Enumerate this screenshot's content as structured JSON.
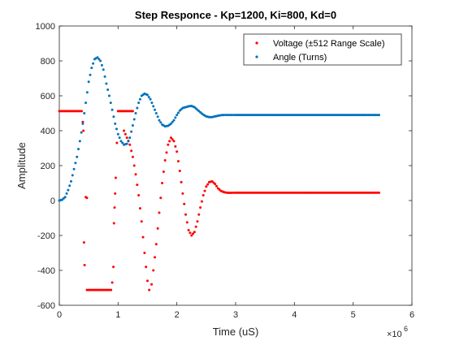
{
  "chart_data": {
    "type": "scatter",
    "title": "Step Responce - Kp=1200, Ki=800, Kd=0",
    "xlabel": "Time (uS)",
    "ylabel": "Amplitude",
    "x_exponent_label": "×10",
    "x_exponent_power": "6",
    "x_ticks": [
      "0",
      "1",
      "2",
      "3",
      "4",
      "5",
      "6"
    ],
    "y_ticks": [
      "-600",
      "-400",
      "-200",
      "0",
      "200",
      "400",
      "600",
      "800",
      "1000"
    ],
    "xlim": [
      0,
      6
    ],
    "ylim": [
      -600,
      1000
    ],
    "x_units_multiplier": 1000000,
    "grid": false,
    "legend_position": "top-right",
    "series": [
      {
        "name": "Voltage (±512 Range Scale)",
        "color": "#ff0000",
        "points": [
          [
            0.0,
            512
          ],
          [
            0.05,
            512
          ],
          [
            0.1,
            512
          ],
          [
            0.15,
            512
          ],
          [
            0.2,
            512
          ],
          [
            0.25,
            512
          ],
          [
            0.3,
            512
          ],
          [
            0.35,
            512
          ],
          [
            0.38,
            512
          ],
          [
            0.4,
            450
          ],
          [
            0.41,
            400
          ],
          [
            0.42,
            -240
          ],
          [
            0.43,
            -370
          ],
          [
            0.45,
            20
          ],
          [
            0.47,
            15
          ],
          [
            0.47,
            -512
          ],
          [
            0.5,
            -512
          ],
          [
            0.55,
            -512
          ],
          [
            0.6,
            -512
          ],
          [
            0.65,
            -512
          ],
          [
            0.7,
            -512
          ],
          [
            0.75,
            -512
          ],
          [
            0.8,
            -512
          ],
          [
            0.85,
            -512
          ],
          [
            0.88,
            -512
          ],
          [
            0.9,
            -470
          ],
          [
            0.92,
            -380
          ],
          [
            0.93,
            -130
          ],
          [
            0.94,
            -40
          ],
          [
            0.95,
            40
          ],
          [
            0.96,
            130
          ],
          [
            0.98,
            330
          ],
          [
            1.0,
            512
          ],
          [
            1.05,
            512
          ],
          [
            1.1,
            512
          ],
          [
            1.15,
            512
          ],
          [
            1.2,
            512
          ],
          [
            1.25,
            512
          ],
          [
            1.1,
            400
          ],
          [
            1.15,
            360
          ],
          [
            1.2,
            320
          ],
          [
            1.25,
            250
          ],
          [
            1.3,
            150
          ],
          [
            1.35,
            30
          ],
          [
            1.4,
            -120
          ],
          [
            1.45,
            -300
          ],
          [
            1.5,
            -460
          ],
          [
            1.53,
            -512
          ],
          [
            1.57,
            -480
          ],
          [
            1.6,
            -400
          ],
          [
            1.65,
            -250
          ],
          [
            1.7,
            -70
          ],
          [
            1.75,
            100
          ],
          [
            1.8,
            230
          ],
          [
            1.85,
            320
          ],
          [
            1.9,
            360
          ],
          [
            1.95,
            340
          ],
          [
            2.0,
            280
          ],
          [
            2.05,
            170
          ],
          [
            2.1,
            40
          ],
          [
            2.15,
            -80
          ],
          [
            2.2,
            -170
          ],
          [
            2.25,
            -200
          ],
          [
            2.3,
            -180
          ],
          [
            2.35,
            -120
          ],
          [
            2.4,
            -40
          ],
          [
            2.45,
            30
          ],
          [
            2.5,
            80
          ],
          [
            2.55,
            105
          ],
          [
            2.6,
            110
          ],
          [
            2.65,
            95
          ],
          [
            2.7,
            70
          ],
          [
            2.75,
            55
          ],
          [
            2.8,
            48
          ],
          [
            2.85,
            45
          ],
          [
            2.9,
            44
          ],
          [
            3.0,
            45
          ],
          [
            3.2,
            45
          ],
          [
            3.4,
            45
          ],
          [
            3.6,
            45
          ],
          [
            3.8,
            45
          ],
          [
            4.0,
            45
          ],
          [
            4.2,
            45
          ],
          [
            4.4,
            45
          ],
          [
            4.6,
            45
          ],
          [
            4.8,
            45
          ],
          [
            5.0,
            45
          ],
          [
            5.2,
            45
          ],
          [
            5.44,
            45
          ]
        ]
      },
      {
        "name": "Angle (Turns)",
        "color": "#0072bd",
        "points": [
          [
            0.0,
            0
          ],
          [
            0.05,
            5
          ],
          [
            0.1,
            20
          ],
          [
            0.15,
            60
          ],
          [
            0.2,
            110
          ],
          [
            0.25,
            180
          ],
          [
            0.3,
            250
          ],
          [
            0.35,
            340
          ],
          [
            0.4,
            440
          ],
          [
            0.45,
            560
          ],
          [
            0.5,
            680
          ],
          [
            0.55,
            760
          ],
          [
            0.6,
            810
          ],
          [
            0.65,
            820
          ],
          [
            0.7,
            800
          ],
          [
            0.75,
            750
          ],
          [
            0.8,
            670
          ],
          [
            0.85,
            600
          ],
          [
            0.9,
            520
          ],
          [
            0.95,
            440
          ],
          [
            1.0,
            380
          ],
          [
            1.05,
            340
          ],
          [
            1.1,
            320
          ],
          [
            1.15,
            325
          ],
          [
            1.2,
            360
          ],
          [
            1.25,
            430
          ],
          [
            1.3,
            500
          ],
          [
            1.35,
            560
          ],
          [
            1.4,
            600
          ],
          [
            1.45,
            612
          ],
          [
            1.5,
            605
          ],
          [
            1.55,
            580
          ],
          [
            1.6,
            540
          ],
          [
            1.65,
            500
          ],
          [
            1.7,
            460
          ],
          [
            1.75,
            435
          ],
          [
            1.8,
            425
          ],
          [
            1.85,
            428
          ],
          [
            1.9,
            440
          ],
          [
            1.95,
            460
          ],
          [
            2.0,
            490
          ],
          [
            2.05,
            515
          ],
          [
            2.1,
            530
          ],
          [
            2.15,
            535
          ],
          [
            2.2,
            540
          ],
          [
            2.25,
            542
          ],
          [
            2.3,
            535
          ],
          [
            2.35,
            520
          ],
          [
            2.4,
            505
          ],
          [
            2.45,
            492
          ],
          [
            2.5,
            482
          ],
          [
            2.55,
            478
          ],
          [
            2.6,
            478
          ],
          [
            2.65,
            482
          ],
          [
            2.7,
            486
          ],
          [
            2.75,
            489
          ],
          [
            2.8,
            490
          ],
          [
            2.9,
            490
          ],
          [
            3.0,
            490
          ],
          [
            3.2,
            490
          ],
          [
            3.4,
            490
          ],
          [
            3.6,
            490
          ],
          [
            3.8,
            490
          ],
          [
            4.0,
            490
          ],
          [
            4.2,
            490
          ],
          [
            4.4,
            490
          ],
          [
            4.6,
            490
          ],
          [
            4.8,
            490
          ],
          [
            5.0,
            490
          ],
          [
            5.2,
            490
          ],
          [
            5.44,
            490
          ]
        ]
      }
    ]
  }
}
